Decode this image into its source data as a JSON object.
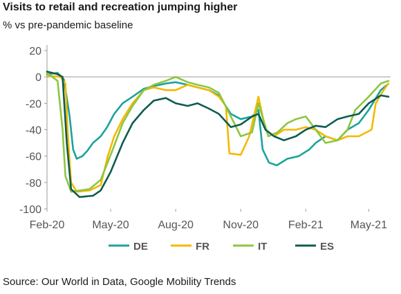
{
  "title": "Visits to retail and recreation jumping higher",
  "subtitle": "% vs pre-pandemic baseline",
  "source": "Source: Our World in Data, Google Mobility Trends",
  "chart_data": {
    "type": "line",
    "title": "Visits to retail and recreation jumping higher",
    "ylabel": "% vs pre-pandemic baseline",
    "xlabel": "",
    "ylim": [
      -100,
      20
    ],
    "yticks": [
      "20",
      "0",
      "-20",
      "-40",
      "-60",
      "-80",
      "-100"
    ],
    "ytick_values": [
      20,
      0,
      -20,
      -40,
      -60,
      -80,
      -100
    ],
    "xlim": [
      "2020-02-15",
      "2021-06-15"
    ],
    "xticks": [
      {
        "date": "2020-02-15",
        "label": "Feb-20"
      },
      {
        "date": "2020-05-15",
        "label": "May-20"
      },
      {
        "date": "2020-08-15",
        "label": "Aug-20"
      },
      {
        "date": "2020-11-15",
        "label": "Nov-20"
      },
      {
        "date": "2021-02-15",
        "label": "Feb-21"
      },
      {
        "date": "2021-05-15",
        "label": "May-21"
      }
    ],
    "grid": false,
    "legend_position": "bottom",
    "series": [
      {
        "name": "DE",
        "color": "#1aa39a",
        "points": [
          [
            "2020-02-15",
            2
          ],
          [
            "2020-03-01",
            3
          ],
          [
            "2020-03-10",
            -2
          ],
          [
            "2020-03-18",
            -30
          ],
          [
            "2020-03-23",
            -55
          ],
          [
            "2020-03-28",
            -62
          ],
          [
            "2020-04-05",
            -60
          ],
          [
            "2020-04-12",
            -56
          ],
          [
            "2020-04-20",
            -50
          ],
          [
            "2020-05-01",
            -45
          ],
          [
            "2020-05-10",
            -38
          ],
          [
            "2020-05-20",
            -28
          ],
          [
            "2020-06-01",
            -20
          ],
          [
            "2020-06-15",
            -15
          ],
          [
            "2020-07-01",
            -9
          ],
          [
            "2020-07-15",
            -7
          ],
          [
            "2020-08-01",
            -5
          ],
          [
            "2020-08-15",
            -4
          ],
          [
            "2020-09-01",
            -6
          ],
          [
            "2020-09-15",
            -8
          ],
          [
            "2020-10-01",
            -10
          ],
          [
            "2020-10-15",
            -14
          ],
          [
            "2020-11-01",
            -28
          ],
          [
            "2020-11-15",
            -32
          ],
          [
            "2020-12-01",
            -30
          ],
          [
            "2020-12-10",
            -25
          ],
          [
            "2020-12-16",
            -55
          ],
          [
            "2020-12-25",
            -65
          ],
          [
            "2021-01-05",
            -67
          ],
          [
            "2021-01-20",
            -62
          ],
          [
            "2021-02-05",
            -60
          ],
          [
            "2021-02-20",
            -55
          ],
          [
            "2021-03-01",
            -50
          ],
          [
            "2021-03-15",
            -45
          ],
          [
            "2021-04-01",
            -48
          ],
          [
            "2021-04-15",
            -40
          ],
          [
            "2021-05-01",
            -35
          ],
          [
            "2021-05-15",
            -25
          ],
          [
            "2021-06-01",
            -10
          ],
          [
            "2021-06-10",
            -6
          ]
        ]
      },
      {
        "name": "FR",
        "color": "#f5b800",
        "points": [
          [
            "2020-02-15",
            1
          ],
          [
            "2020-03-05",
            0
          ],
          [
            "2020-03-12",
            -5
          ],
          [
            "2020-03-15",
            -40
          ],
          [
            "2020-03-20",
            -80
          ],
          [
            "2020-03-28",
            -87
          ],
          [
            "2020-04-15",
            -86
          ],
          [
            "2020-05-01",
            -82
          ],
          [
            "2020-05-11",
            -60
          ],
          [
            "2020-05-20",
            -45
          ],
          [
            "2020-06-01",
            -32
          ],
          [
            "2020-06-15",
            -20
          ],
          [
            "2020-07-01",
            -10
          ],
          [
            "2020-07-15",
            -8
          ],
          [
            "2020-08-01",
            -10
          ],
          [
            "2020-08-15",
            -10
          ],
          [
            "2020-09-01",
            -6
          ],
          [
            "2020-09-15",
            -8
          ],
          [
            "2020-10-01",
            -10
          ],
          [
            "2020-10-15",
            -15
          ],
          [
            "2020-10-25",
            -22
          ],
          [
            "2020-10-30",
            -58
          ],
          [
            "2020-11-15",
            -59
          ],
          [
            "2020-11-27",
            -45
          ],
          [
            "2020-12-10",
            -15
          ],
          [
            "2020-12-20",
            -40
          ],
          [
            "2021-01-01",
            -45
          ],
          [
            "2021-01-15",
            -40
          ],
          [
            "2021-02-01",
            -40
          ],
          [
            "2021-02-15",
            -38
          ],
          [
            "2021-03-01",
            -40
          ],
          [
            "2021-03-15",
            -45
          ],
          [
            "2021-04-01",
            -48
          ],
          [
            "2021-04-15",
            -45
          ],
          [
            "2021-05-01",
            -45
          ],
          [
            "2021-05-19",
            -40
          ],
          [
            "2021-05-25",
            -20
          ],
          [
            "2021-06-05",
            -10
          ],
          [
            "2021-06-12",
            -5
          ]
        ]
      },
      {
        "name": "IT",
        "color": "#8cc63f",
        "points": [
          [
            "2020-02-15",
            3
          ],
          [
            "2020-03-01",
            -3
          ],
          [
            "2020-03-08",
            -40
          ],
          [
            "2020-03-12",
            -75
          ],
          [
            "2020-03-20",
            -87
          ],
          [
            "2020-04-15",
            -85
          ],
          [
            "2020-05-01",
            -78
          ],
          [
            "2020-05-18",
            -55
          ],
          [
            "2020-06-01",
            -35
          ],
          [
            "2020-06-15",
            -22
          ],
          [
            "2020-07-01",
            -10
          ],
          [
            "2020-07-15",
            -6
          ],
          [
            "2020-08-01",
            -3
          ],
          [
            "2020-08-15",
            0
          ],
          [
            "2020-09-01",
            -4
          ],
          [
            "2020-09-15",
            -6
          ],
          [
            "2020-10-01",
            -8
          ],
          [
            "2020-10-15",
            -12
          ],
          [
            "2020-11-01",
            -30
          ],
          [
            "2020-11-15",
            -45
          ],
          [
            "2020-12-01",
            -42
          ],
          [
            "2020-12-10",
            -20
          ],
          [
            "2020-12-24",
            -45
          ],
          [
            "2021-01-06",
            -42
          ],
          [
            "2021-01-20",
            -35
          ],
          [
            "2021-02-01",
            -32
          ],
          [
            "2021-02-15",
            -30
          ],
          [
            "2021-03-01",
            -40
          ],
          [
            "2021-03-15",
            -50
          ],
          [
            "2021-04-01",
            -48
          ],
          [
            "2021-04-15",
            -40
          ],
          [
            "2021-04-26",
            -25
          ],
          [
            "2021-05-15",
            -15
          ],
          [
            "2021-06-01",
            -5
          ],
          [
            "2021-06-12",
            -3
          ]
        ]
      },
      {
        "name": "ES",
        "color": "#0d5c4f",
        "points": [
          [
            "2020-02-15",
            4
          ],
          [
            "2020-03-01",
            2
          ],
          [
            "2020-03-08",
            0
          ],
          [
            "2020-03-14",
            -50
          ],
          [
            "2020-03-20",
            -85
          ],
          [
            "2020-04-01",
            -91
          ],
          [
            "2020-04-20",
            -90
          ],
          [
            "2020-05-01",
            -86
          ],
          [
            "2020-05-15",
            -72
          ],
          [
            "2020-06-01",
            -50
          ],
          [
            "2020-06-15",
            -35
          ],
          [
            "2020-07-01",
            -25
          ],
          [
            "2020-07-15",
            -18
          ],
          [
            "2020-08-01",
            -16
          ],
          [
            "2020-08-15",
            -20
          ],
          [
            "2020-09-01",
            -22
          ],
          [
            "2020-09-15",
            -20
          ],
          [
            "2020-10-01",
            -24
          ],
          [
            "2020-10-15",
            -28
          ],
          [
            "2020-11-01",
            -38
          ],
          [
            "2020-11-15",
            -36
          ],
          [
            "2020-12-01",
            -30
          ],
          [
            "2020-12-10",
            -28
          ],
          [
            "2020-12-20",
            -40
          ],
          [
            "2021-01-01",
            -45
          ],
          [
            "2021-01-15",
            -48
          ],
          [
            "2021-02-01",
            -45
          ],
          [
            "2021-02-15",
            -40
          ],
          [
            "2021-03-01",
            -37
          ],
          [
            "2021-03-15",
            -38
          ],
          [
            "2021-04-01",
            -32
          ],
          [
            "2021-04-15",
            -30
          ],
          [
            "2021-05-01",
            -28
          ],
          [
            "2021-05-15",
            -20
          ],
          [
            "2021-06-01",
            -14
          ],
          [
            "2021-06-12",
            -15
          ]
        ]
      }
    ]
  }
}
